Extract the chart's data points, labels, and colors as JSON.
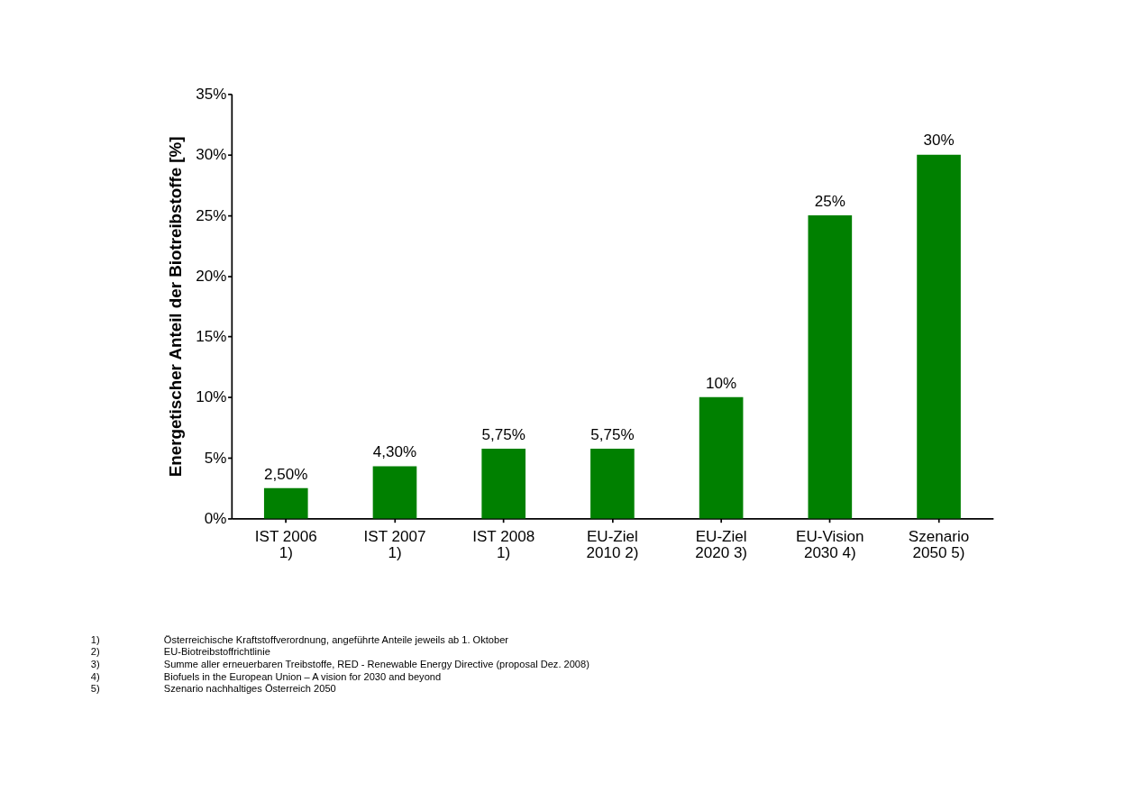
{
  "chart_data": {
    "type": "bar",
    "ylabel": "Energetischer Anteil der Biotreibstoffe [%]",
    "categories": [
      "IST 2006\n1)",
      "IST 2007\n1)",
      "IST 2008\n1)",
      "EU-Ziel\n2010 2)",
      "EU-Ziel\n2020 3)",
      "EU-Vision\n2030 4)",
      "Szenario\n2050 5)"
    ],
    "values": [
      2.5,
      4.3,
      5.75,
      5.75,
      10,
      25,
      30
    ],
    "value_labels": [
      "2,50%",
      "4,30%",
      "5,75%",
      "5,75%",
      "10%",
      "25%",
      "30%"
    ],
    "color": "#008000",
    "ylim": [
      0,
      35
    ],
    "yticks": [
      {
        "value": 0,
        "label": "0%"
      },
      {
        "value": 5,
        "label": "5%"
      },
      {
        "value": 10,
        "label": "10%"
      },
      {
        "value": 15,
        "label": "15%"
      },
      {
        "value": 20,
        "label": "20%"
      },
      {
        "value": 25,
        "label": "25%"
      },
      {
        "value": 30,
        "label": "30%"
      },
      {
        "value": 35,
        "label": "35%"
      }
    ],
    "grid": false,
    "annotations": [
      "1) Österreichische Kraftstoffverordnung, angeführte Anteile jeweils ab 1. Oktober",
      "2) EU-Biotreibstoffrichtlinie",
      "3) Summe aller erneuerbaren Treibstoffe, RED - Renewable Energy Directive (proposal Dez. 2008)",
      "4) Biofuels in the European Union – A vision for 2030 and beyond",
      "5) Szenario nachhaltiges Österreich 2050"
    ]
  }
}
